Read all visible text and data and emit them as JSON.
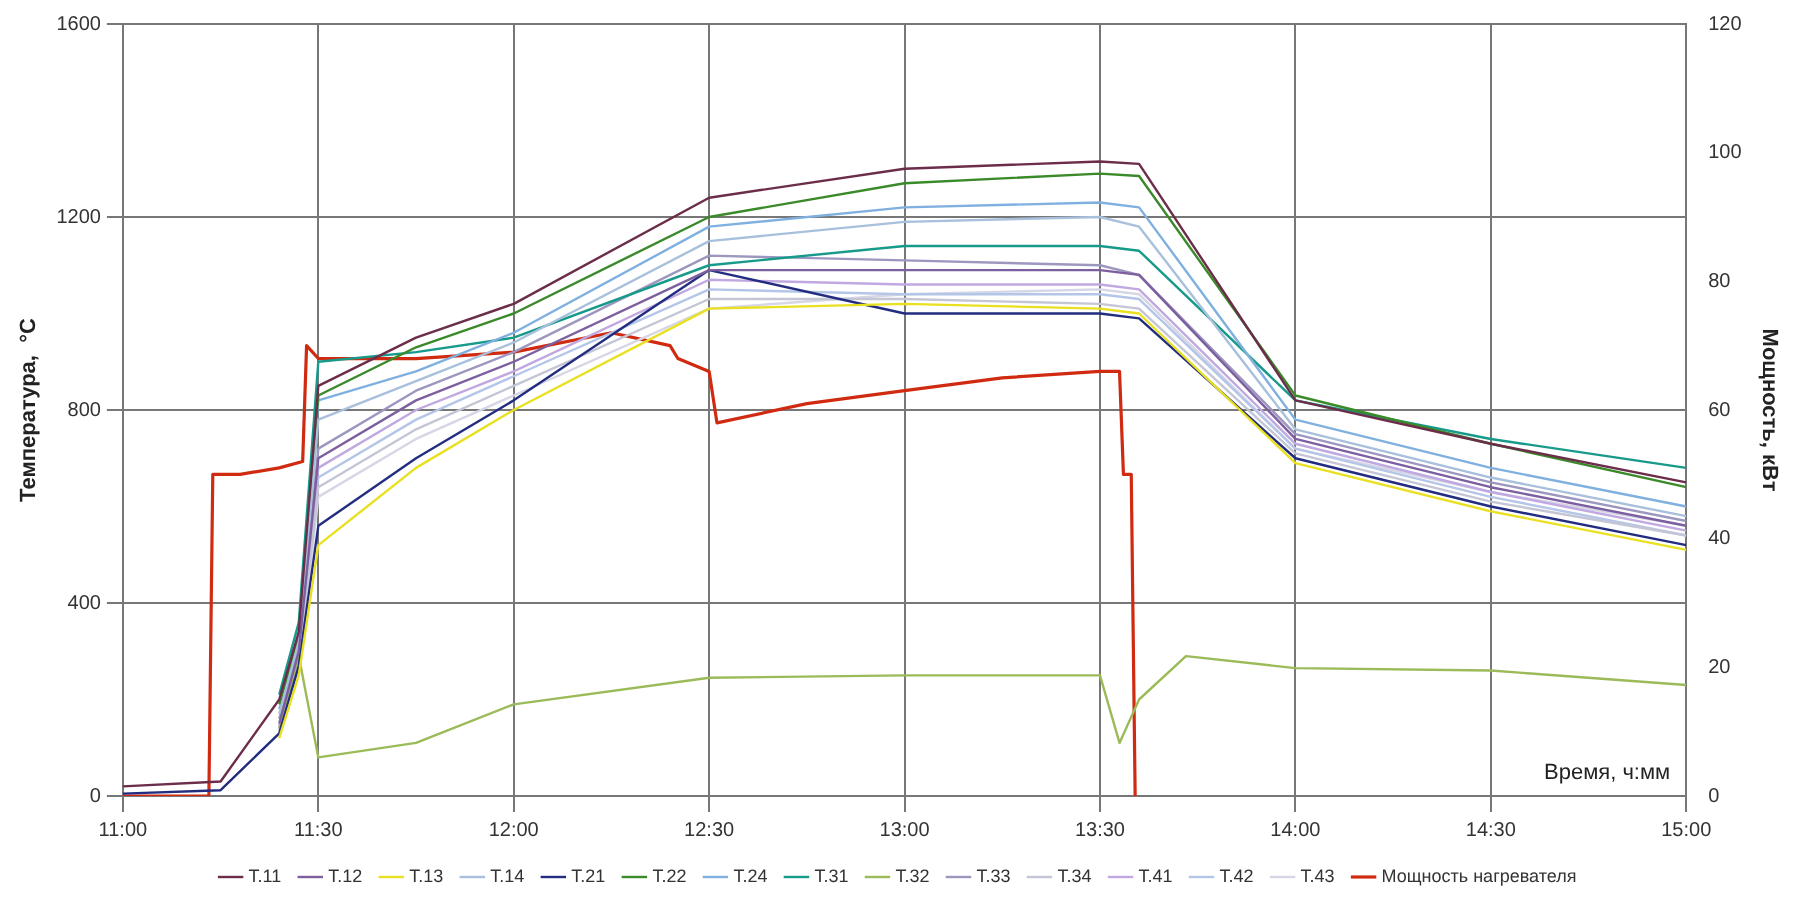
{
  "chart_data": {
    "type": "line",
    "xlabel": "Время, ч:мм",
    "ylabel": "Температура,  °С",
    "y2label": "Мощность, кВт",
    "x": [
      11.0,
      11.25,
      11.4,
      11.45,
      11.5,
      11.75,
      12.0,
      12.5,
      13.0,
      13.5,
      13.6,
      14.0,
      14.5,
      15.0
    ],
    "xlim": [
      11,
      15
    ],
    "xticks": [
      {
        "value": 11,
        "label": "11:00"
      },
      {
        "value": 11.5,
        "label": "11:30"
      },
      {
        "value": 12,
        "label": "12:00"
      },
      {
        "value": 12.5,
        "label": "12:30"
      },
      {
        "value": 13,
        "label": "13:00"
      },
      {
        "value": 13.5,
        "label": "13:30"
      },
      {
        "value": 14,
        "label": "14:00"
      },
      {
        "value": 14.5,
        "label": "14:30"
      },
      {
        "value": 15,
        "label": "15:00"
      }
    ],
    "ylim": [
      0,
      1600
    ],
    "yticks": [
      0,
      400,
      800,
      1200,
      1600
    ],
    "y2lim": [
      0,
      120
    ],
    "y2ticks": [
      0,
      20,
      40,
      60,
      80,
      100,
      120
    ],
    "grid": true,
    "legend": "bottom",
    "marker": "none",
    "line_style": "solid",
    "series": [
      {
        "name": "T.11",
        "color": "#6b2d4a",
        "values": [
          20,
          30,
          200,
          340,
          850,
          950,
          1020,
          1240,
          1300,
          1315,
          1310,
          820,
          730,
          650
        ]
      },
      {
        "name": "T.12",
        "color": "#7d5fa0",
        "values": [
          null,
          null,
          150,
          300,
          700,
          820,
          900,
          1090,
          1090,
          1090,
          1080,
          740,
          640,
          560
        ]
      },
      {
        "name": "T.13",
        "color": "#e8e020",
        "values": [
          null,
          null,
          120,
          250,
          520,
          680,
          800,
          1010,
          1020,
          1010,
          1000,
          690,
          590,
          510
        ]
      },
      {
        "name": "T.14",
        "color": "#a8c0dc",
        "values": [
          null,
          null,
          170,
          320,
          780,
          860,
          940,
          1150,
          1190,
          1200,
          1180,
          760,
          660,
          580
        ]
      },
      {
        "name": "T.21",
        "color": "#232d80",
        "values": [
          5,
          12,
          130,
          270,
          560,
          700,
          820,
          1090,
          1000,
          1000,
          990,
          700,
          600,
          520
        ]
      },
      {
        "name": "T.22",
        "color": "#3a8a2a",
        "values": [
          null,
          null,
          190,
          330,
          830,
          930,
          1000,
          1200,
          1270,
          1290,
          1285,
          830,
          730,
          640
        ]
      },
      {
        "name": "T.24",
        "color": "#7fb0e0",
        "values": [
          null,
          null,
          180,
          310,
          820,
          880,
          960,
          1180,
          1220,
          1230,
          1220,
          780,
          680,
          600
        ]
      },
      {
        "name": "T.31",
        "color": "#179a8a",
        "values": [
          null,
          null,
          210,
          360,
          900,
          920,
          950,
          1100,
          1140,
          1140,
          1130,
          820,
          740,
          680
        ]
      },
      {
        "name": "T.32",
        "color": "#9bbb59",
        "x": [
          11.4,
          11.45,
          11.5,
          11.75,
          12.0,
          12.5,
          13.0,
          13.5,
          13.55,
          13.6,
          13.72,
          14.0,
          14.5,
          15.0
        ],
        "values": [
          140,
          290,
          80,
          110,
          190,
          245,
          250,
          250,
          110,
          200,
          290,
          265,
          260,
          230
        ]
      },
      {
        "name": "T.33",
        "color": "#9d97c0",
        "values": [
          null,
          null,
          160,
          305,
          720,
          840,
          920,
          1120,
          1110,
          1100,
          1080,
          750,
          650,
          570
        ]
      },
      {
        "name": "T.34",
        "color": "#c4c6d6",
        "values": [
          null,
          null,
          135,
          280,
          640,
          760,
          850,
          1030,
          1030,
          1020,
          1010,
          710,
          610,
          540
        ]
      },
      {
        "name": "T.41",
        "color": "#c0a8e0",
        "values": [
          null,
          null,
          145,
          290,
          680,
          800,
          880,
          1070,
          1060,
          1060,
          1050,
          730,
          630,
          550
        ]
      },
      {
        "name": "T.42",
        "color": "#b4c6e8",
        "values": [
          null,
          null,
          140,
          285,
          660,
          780,
          870,
          1050,
          1040,
          1040,
          1030,
          720,
          620,
          540
        ]
      },
      {
        "name": "T.43",
        "color": "#d6d6e6",
        "values": [
          null,
          null,
          125,
          260,
          620,
          740,
          830,
          1010,
          1040,
          1050,
          1040,
          720,
          630,
          560
        ]
      },
      {
        "name": "Мощность нагревателя",
        "color": "#d02a10",
        "axis": "y2",
        "x": [
          11.0,
          11.22,
          11.23,
          11.3,
          11.4,
          11.46,
          11.47,
          11.5,
          11.75,
          12.0,
          12.25,
          12.4,
          12.42,
          12.5,
          12.52,
          12.75,
          13.0,
          13.25,
          13.5,
          13.55,
          13.56,
          13.58,
          13.59
        ],
        "values": [
          0,
          0,
          50,
          50,
          51,
          52,
          70,
          68,
          68,
          69,
          72,
          70,
          68,
          66,
          58,
          61,
          63,
          65,
          66,
          66,
          50,
          50,
          0
        ]
      }
    ]
  }
}
